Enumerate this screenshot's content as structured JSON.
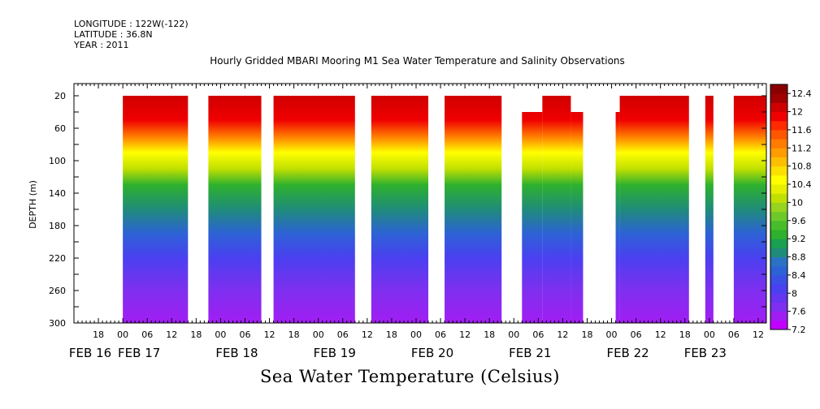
{
  "header": {
    "longitude": "LONGITUDE : 122W(-122)",
    "latitude": "LATITUDE : 36.8N",
    "year": "YEAR : 2011"
  },
  "chart_data": {
    "type": "heatmap",
    "title": "Hourly Gridded MBARI Mooring M1 Sea Water Temperature and Salinity Observations",
    "xlabel": "Sea Water Temperature (Celsius)",
    "ylabel": "DEPTH (m)",
    "x_unit": "hours since FEB 16 00:00 (2011)",
    "xlim": [
      12,
      182
    ],
    "ylim": [
      300,
      5
    ],
    "yticks": [
      20,
      60,
      100,
      140,
      180,
      220,
      260,
      300
    ],
    "y_inverted": true,
    "hour_ticks": [
      {
        "h": 18,
        "label": "18"
      },
      {
        "h": 24,
        "label": "00"
      },
      {
        "h": 30,
        "label": "06"
      },
      {
        "h": 36,
        "label": "12"
      },
      {
        "h": 42,
        "label": "18"
      },
      {
        "h": 48,
        "label": "00"
      },
      {
        "h": 54,
        "label": "06"
      },
      {
        "h": 60,
        "label": "12"
      },
      {
        "h": 66,
        "label": "18"
      },
      {
        "h": 72,
        "label": "00"
      },
      {
        "h": 78,
        "label": "06"
      },
      {
        "h": 84,
        "label": "12"
      },
      {
        "h": 90,
        "label": "18"
      },
      {
        "h": 96,
        "label": "00"
      },
      {
        "h": 102,
        "label": "06"
      },
      {
        "h": 108,
        "label": "12"
      },
      {
        "h": 114,
        "label": "18"
      },
      {
        "h": 120,
        "label": "00"
      },
      {
        "h": 126,
        "label": "06"
      },
      {
        "h": 132,
        "label": "12"
      },
      {
        "h": 138,
        "label": "18"
      },
      {
        "h": 144,
        "label": "00"
      },
      {
        "h": 150,
        "label": "06"
      },
      {
        "h": 156,
        "label": "12"
      },
      {
        "h": 162,
        "label": "18"
      },
      {
        "h": 168,
        "label": "00"
      },
      {
        "h": 174,
        "label": "06"
      },
      {
        "h": 180,
        "label": "12"
      }
    ],
    "day_labels": [
      {
        "h": 16,
        "label": "FEB 16"
      },
      {
        "h": 28,
        "label": "FEB 17"
      },
      {
        "h": 52,
        "label": "FEB 18"
      },
      {
        "h": 76,
        "label": "FEB 19"
      },
      {
        "h": 100,
        "label": "FEB 20"
      },
      {
        "h": 124,
        "label": "FEB 21"
      },
      {
        "h": 148,
        "label": "FEB 22"
      },
      {
        "h": 167,
        "label": "FEB 23"
      }
    ],
    "data_blocks": [
      {
        "start": 24,
        "end": 40,
        "top_depth": 20
      },
      {
        "start": 45,
        "end": 58,
        "top_depth": 20
      },
      {
        "start": 61,
        "end": 81,
        "top_depth": 20
      },
      {
        "start": 85,
        "end": 99,
        "top_depth": 20
      },
      {
        "start": 103,
        "end": 117,
        "top_depth": 20
      },
      {
        "start": 122,
        "end": 127,
        "top_depth": 40
      },
      {
        "start": 127,
        "end": 134,
        "top_depth": 20
      },
      {
        "start": 134,
        "end": 137,
        "top_depth": 40
      },
      {
        "start": 145,
        "end": 146,
        "top_depth": 40
      },
      {
        "start": 146,
        "end": 163,
        "top_depth": 20
      },
      {
        "start": 167,
        "end": 169,
        "top_depth": 20
      },
      {
        "start": 174,
        "end": 182,
        "top_depth": 20
      }
    ],
    "temperature_profile": [
      {
        "depth": 20,
        "temp": 12.2
      },
      {
        "depth": 50,
        "temp": 11.9
      },
      {
        "depth": 70,
        "temp": 11.2
      },
      {
        "depth": 90,
        "temp": 10.6
      },
      {
        "depth": 110,
        "temp": 10.0
      },
      {
        "depth": 130,
        "temp": 9.3
      },
      {
        "depth": 160,
        "temp": 8.9
      },
      {
        "depth": 190,
        "temp": 8.6
      },
      {
        "depth": 220,
        "temp": 8.2
      },
      {
        "depth": 260,
        "temp": 7.8
      },
      {
        "depth": 300,
        "temp": 7.4
      }
    ],
    "colorbar": {
      "min": 7.2,
      "max": 12.6,
      "labels": [
        "12.4",
        "12",
        "11.6",
        "11.2",
        "10.8",
        "10.4",
        "10",
        "9.6",
        "9.2",
        "8.8",
        "8.4",
        "8",
        "7.6",
        "7.2"
      ],
      "colors": [
        "#c100ff",
        "#a11ef3",
        "#7f2fef",
        "#6535f0",
        "#4a40f0",
        "#3a50e4",
        "#2d62d6",
        "#2a73c4",
        "#1f8c7a",
        "#19a050",
        "#2eb12e",
        "#47bd2b",
        "#6dc92a",
        "#96d41f",
        "#c1e000",
        "#e6ef00",
        "#ffff00",
        "#fce000",
        "#fcbe00",
        "#ff9c00",
        "#ff7c00",
        "#ff5700",
        "#ff2a00",
        "#f00000",
        "#d00000",
        "#a00000",
        "#8a0000"
      ]
    }
  }
}
